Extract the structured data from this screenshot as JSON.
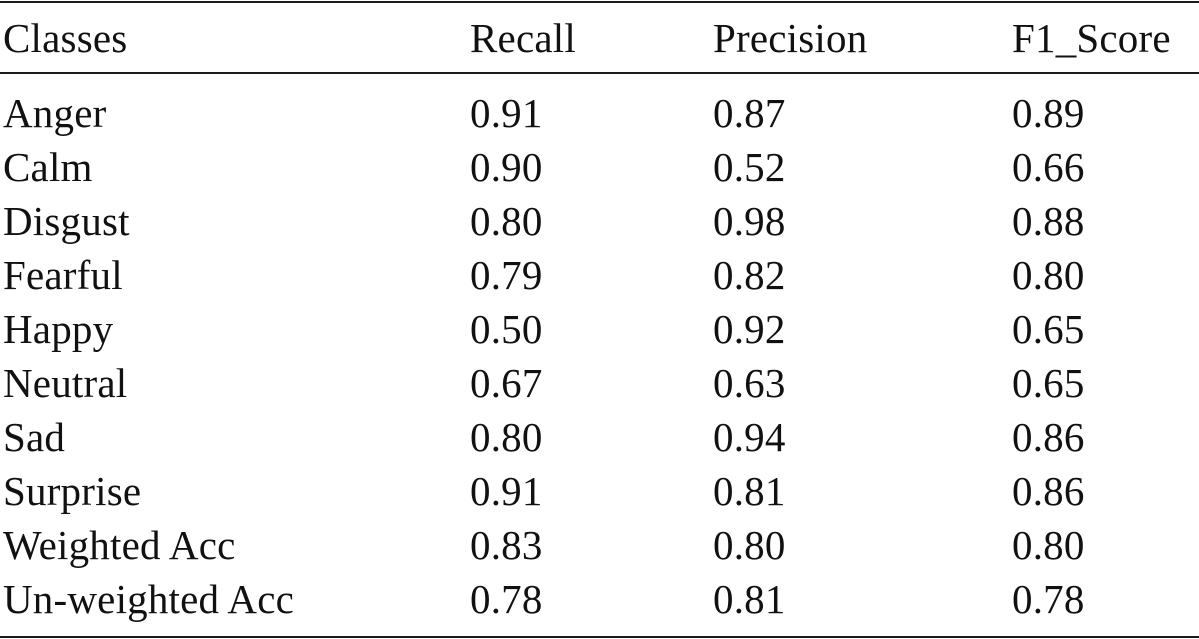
{
  "table": {
    "headers": [
      "Classes",
      "Recall",
      "Precision",
      "F1_Score"
    ],
    "rows": [
      [
        "Anger",
        "0.91",
        "0.87",
        "0.89"
      ],
      [
        "Calm",
        "0.90",
        "0.52",
        "0.66"
      ],
      [
        "Disgust",
        "0.80",
        "0.98",
        "0.88"
      ],
      [
        "Fearful",
        "0.79",
        "0.82",
        "0.80"
      ],
      [
        "Happy",
        "0.50",
        "0.92",
        "0.65"
      ],
      [
        "Neutral",
        "0.67",
        "0.63",
        "0.65"
      ],
      [
        "Sad",
        "0.80",
        "0.94",
        "0.86"
      ],
      [
        "Surprise",
        "0.91",
        "0.81",
        "0.86"
      ],
      [
        "Weighted Acc",
        "0.83",
        "0.80",
        "0.80"
      ],
      [
        "Un-weighted Acc",
        "0.78",
        "0.81",
        "0.78"
      ]
    ]
  }
}
